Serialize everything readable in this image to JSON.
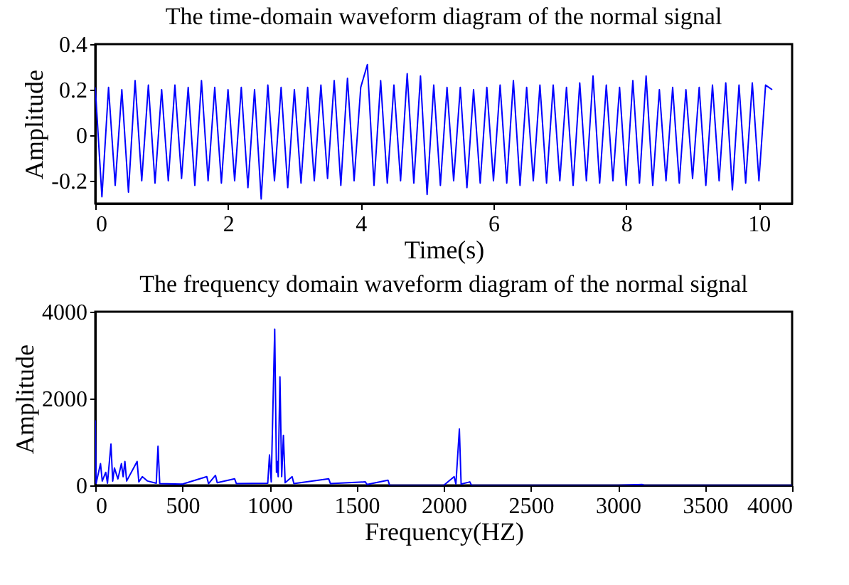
{
  "chart_data": [
    {
      "type": "line",
      "title": "The time-domain waveform diagram of the normal signal",
      "xlabel": "Time(s)",
      "ylabel": "Amplitude",
      "xlim": [
        0,
        10.5
      ],
      "ylim": [
        -0.3,
        0.4
      ],
      "xticks": [
        0,
        2,
        4,
        6,
        8,
        10
      ],
      "yticks": [
        -0.2,
        0,
        0.2,
        0.4
      ],
      "grid": false,
      "series": [
        {
          "color": "#0000ff",
          "x": [
            0,
            0.1,
            0.2,
            0.3,
            0.4,
            0.5,
            0.6,
            0.7,
            0.8,
            0.9,
            1,
            1.1,
            1.2,
            1.3,
            1.4,
            1.5,
            1.6,
            1.7,
            1.8,
            1.9,
            2,
            2.1,
            2.2,
            2.3,
            2.4,
            2.5,
            2.6,
            2.7,
            2.8,
            2.9,
            3,
            3.1,
            3.2,
            3.3,
            3.4,
            3.5,
            3.6,
            3.7,
            3.8,
            3.9,
            4,
            4.1,
            4.2,
            4.3,
            4.4,
            4.5,
            4.6,
            4.7,
            4.8,
            4.9,
            5,
            5.1,
            5.2,
            5.3,
            5.4,
            5.5,
            5.6,
            5.7,
            5.8,
            5.9,
            6,
            6.1,
            6.2,
            6.3,
            6.4,
            6.5,
            6.6,
            6.7,
            6.8,
            6.9,
            7,
            7.1,
            7.2,
            7.3,
            7.4,
            7.5,
            7.6,
            7.7,
            7.8,
            7.9,
            8,
            8.1,
            8.2,
            8.3,
            8.4,
            8.5,
            8.6,
            8.7,
            8.8,
            8.9,
            9,
            9.1,
            9.2,
            9.3,
            9.4,
            9.5,
            9.6,
            9.7,
            9.8,
            9.9,
            10,
            10.1,
            10.2
          ],
          "values": [
            0.21,
            -0.27,
            0.21,
            -0.22,
            0.2,
            -0.25,
            0.24,
            -0.2,
            0.22,
            -0.21,
            0.2,
            -0.2,
            0.22,
            -0.19,
            0.21,
            -0.22,
            0.24,
            -0.2,
            0.21,
            -0.21,
            0.2,
            -0.2,
            0.21,
            -0.23,
            0.2,
            -0.28,
            0.22,
            -0.2,
            0.21,
            -0.23,
            0.2,
            -0.21,
            0.21,
            -0.2,
            0.22,
            -0.19,
            0.24,
            -0.22,
            0.25,
            -0.2,
            0.21,
            0.31,
            -0.22,
            0.24,
            -0.21,
            0.22,
            -0.2,
            0.27,
            -0.21,
            0.26,
            -0.26,
            0.22,
            -0.22,
            0.21,
            -0.2,
            0.21,
            -0.23,
            0.2,
            -0.21,
            0.21,
            -0.2,
            0.22,
            -0.21,
            0.24,
            -0.22,
            0.21,
            -0.2,
            0.22,
            -0.21,
            0.22,
            -0.2,
            0.21,
            -0.22,
            0.23,
            -0.2,
            0.26,
            -0.21,
            0.22,
            -0.2,
            0.21,
            -0.22,
            0.24,
            -0.21,
            0.26,
            -0.22,
            0.2,
            -0.2,
            0.21,
            -0.21,
            0.2,
            -0.19,
            0.21,
            -0.22,
            0.22,
            -0.2,
            0.23,
            -0.24,
            0.22,
            -0.21,
            0.23,
            -0.2,
            0.22,
            0.2
          ]
        }
      ]
    },
    {
      "type": "line",
      "title": "The frequency domain waveform diagram of the normal signal",
      "xlabel": "Frequency(HZ)",
      "ylabel": "Amplitude",
      "xlim": [
        0,
        4000
      ],
      "ylim": [
        0,
        4000
      ],
      "xticks": [
        0,
        500,
        1000,
        1500,
        2000,
        2500,
        3000,
        3500,
        4000
      ],
      "yticks": [
        0,
        2000,
        4000
      ],
      "grid": false,
      "series": [
        {
          "color": "#0000ff",
          "x": [
            0,
            5,
            30,
            40,
            60,
            70,
            90,
            100,
            110,
            130,
            150,
            160,
            170,
            180,
            240,
            250,
            270,
            300,
            350,
            360,
            370,
            500,
            640,
            650,
            690,
            700,
            800,
            810,
            990,
            1000,
            1010,
            1030,
            1040,
            1045,
            1050,
            1060,
            1070,
            1080,
            1090,
            1130,
            1140,
            1340,
            1350,
            1550,
            1560,
            1680,
            1690,
            2000,
            2060,
            2070,
            2090,
            2100,
            2150,
            2160,
            3000,
            3140,
            3150,
            4000
          ],
          "values": [
            1500,
            50,
            500,
            100,
            300,
            50,
            950,
            100,
            400,
            150,
            500,
            200,
            550,
            100,
            550,
            80,
            200,
            100,
            50,
            900,
            40,
            30,
            200,
            40,
            230,
            60,
            150,
            40,
            50,
            700,
            80,
            3600,
            300,
            550,
            200,
            2500,
            200,
            1150,
            60,
            200,
            40,
            150,
            40,
            80,
            20,
            120,
            0,
            0,
            200,
            30,
            1300,
            30,
            80,
            0,
            0,
            20,
            0,
            0
          ]
        }
      ]
    }
  ]
}
